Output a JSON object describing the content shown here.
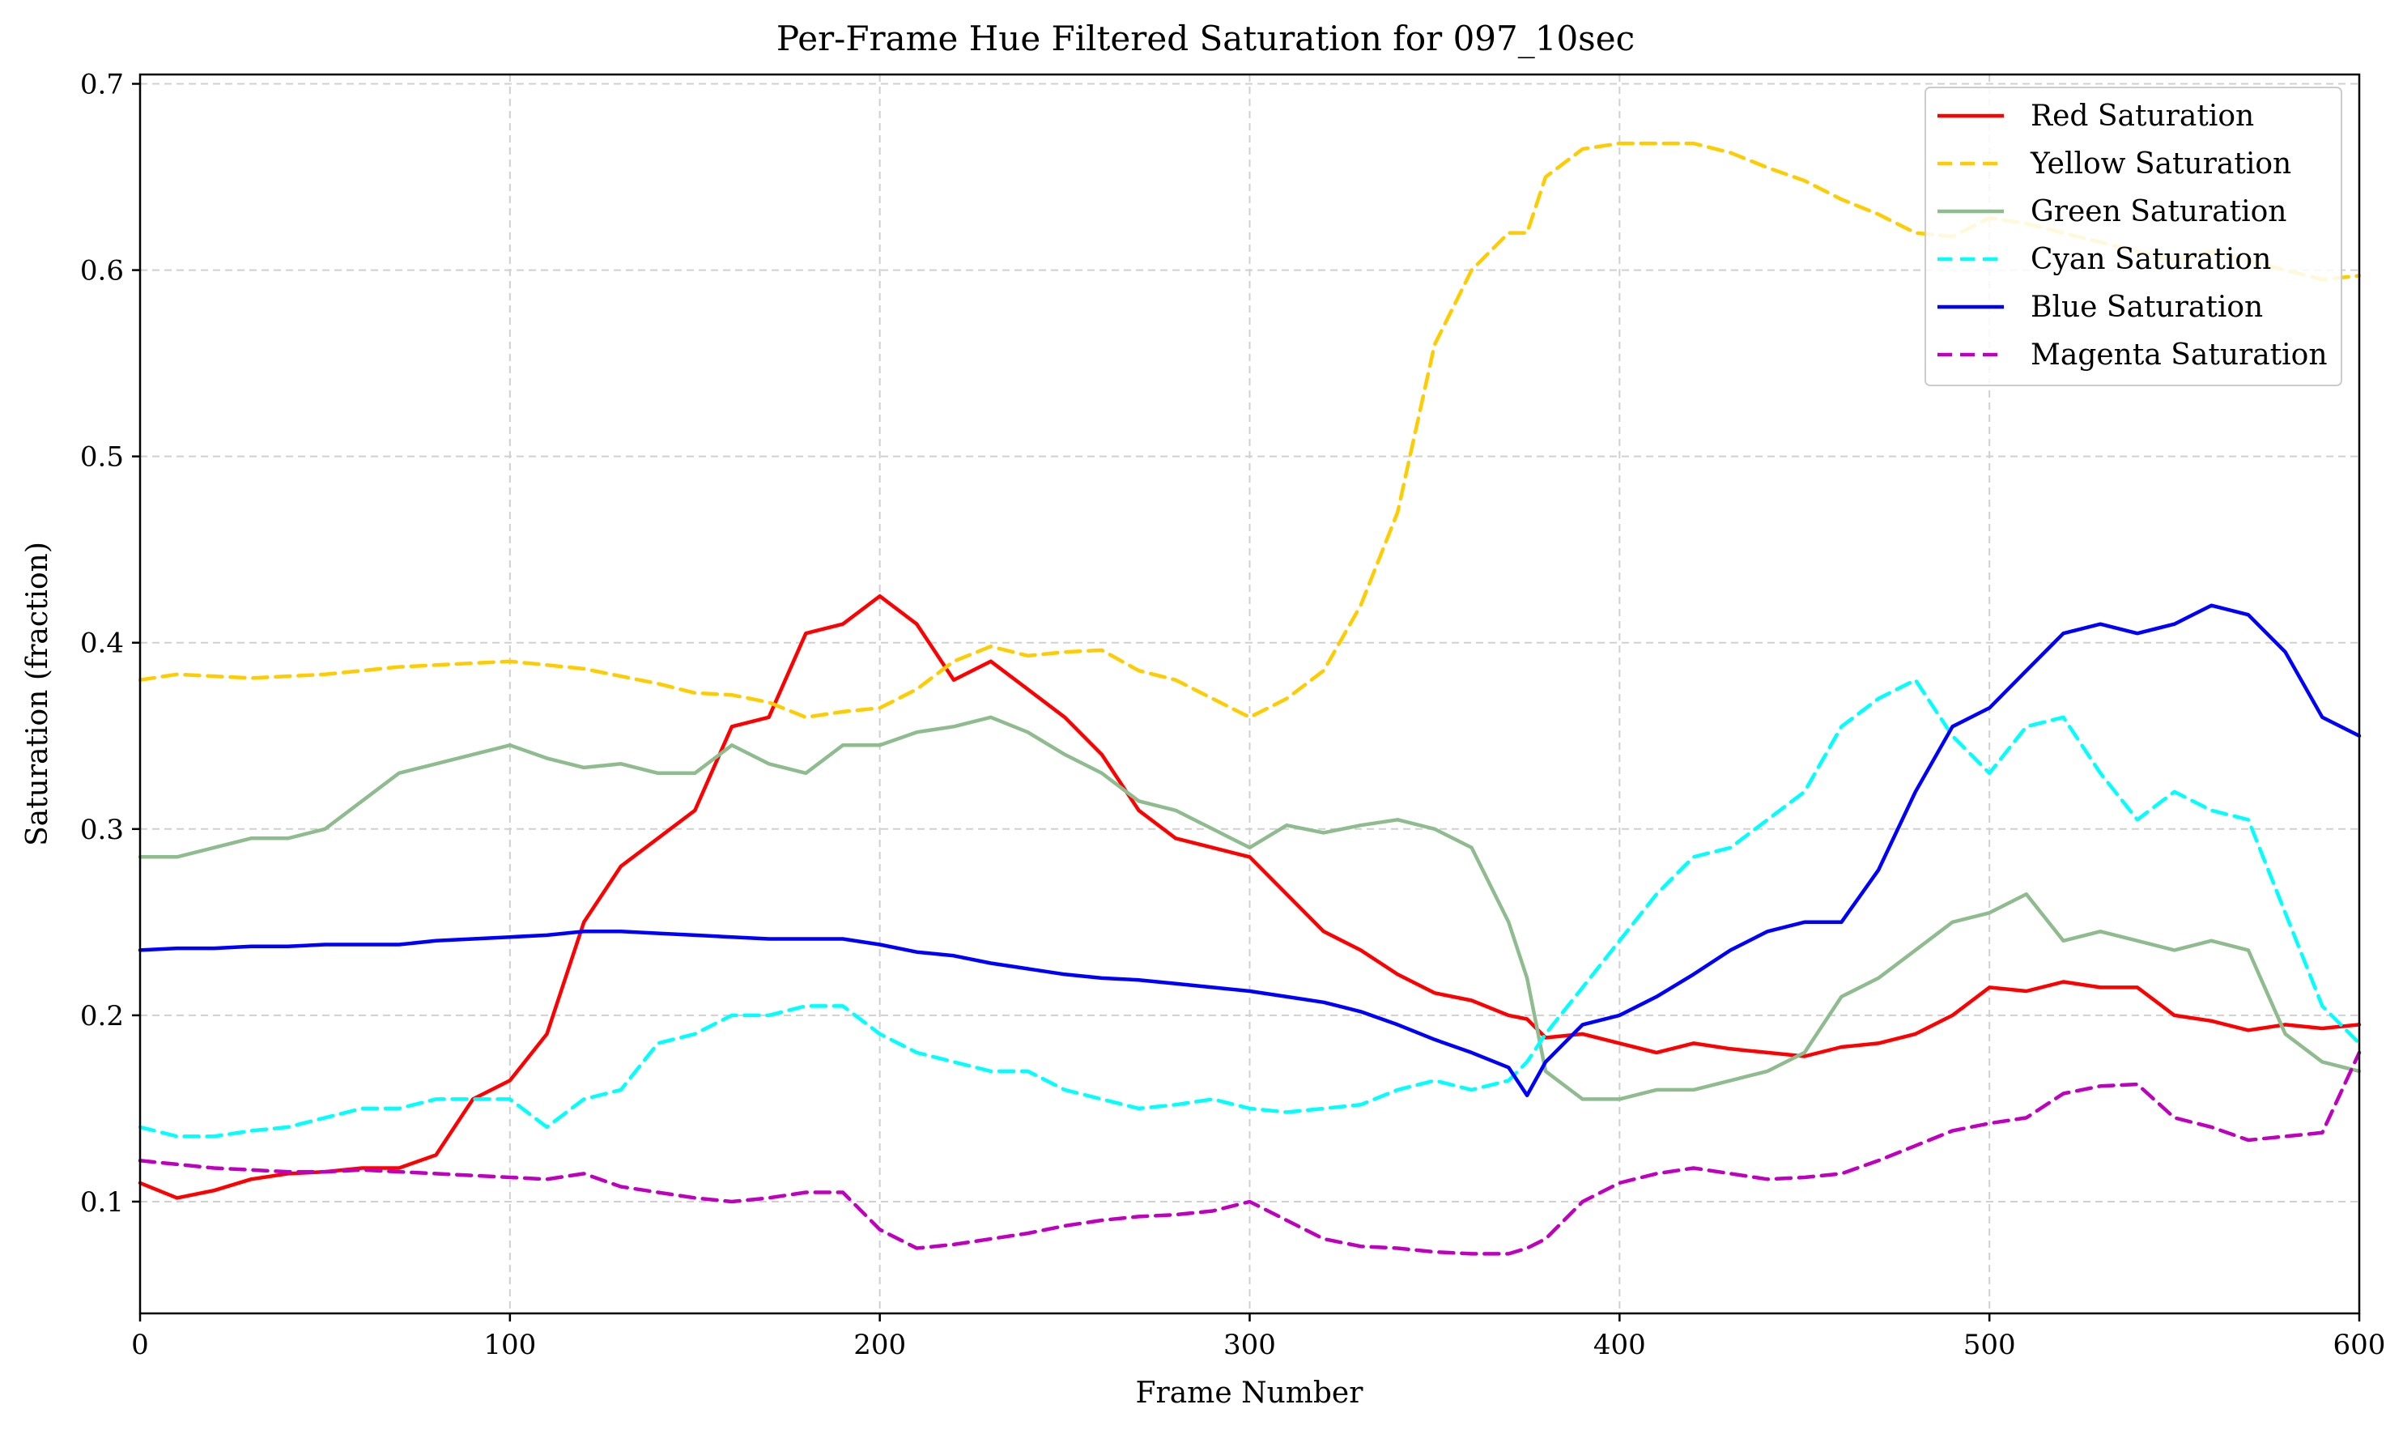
{
  "chart_data": {
    "type": "line",
    "title": "Per-Frame Hue Filtered Saturation for 097_10sec",
    "xlabel": "Frame Number",
    "ylabel": "Saturation (fraction)",
    "xlim": [
      0,
      600
    ],
    "ylim": [
      0.04,
      0.705
    ],
    "xticks": [
      0,
      100,
      200,
      300,
      400,
      500,
      600
    ],
    "yticks": [
      0.1,
      0.2,
      0.3,
      0.4,
      0.5,
      0.6,
      0.7
    ],
    "grid": true,
    "legend_position": "top-right",
    "x": [
      0,
      10,
      20,
      30,
      40,
      50,
      60,
      70,
      80,
      90,
      100,
      110,
      120,
      130,
      140,
      150,
      160,
      170,
      180,
      190,
      200,
      210,
      220,
      230,
      240,
      250,
      260,
      270,
      280,
      290,
      300,
      310,
      320,
      330,
      340,
      350,
      360,
      370,
      375,
      380,
      390,
      400,
      410,
      420,
      430,
      440,
      450,
      460,
      470,
      480,
      490,
      500,
      510,
      520,
      530,
      540,
      550,
      560,
      570,
      580,
      590,
      600
    ],
    "series": [
      {
        "name": "Red Saturation",
        "color": "#ff0000",
        "dash": "solid",
        "values": [
          0.11,
          0.102,
          0.106,
          0.112,
          0.115,
          0.116,
          0.118,
          0.118,
          0.125,
          0.155,
          0.165,
          0.19,
          0.25,
          0.28,
          0.295,
          0.31,
          0.355,
          0.36,
          0.405,
          0.41,
          0.425,
          0.41,
          0.38,
          0.39,
          0.375,
          0.36,
          0.34,
          0.31,
          0.295,
          0.29,
          0.285,
          0.265,
          0.245,
          0.235,
          0.222,
          0.212,
          0.208,
          0.2,
          0.198,
          0.188,
          0.19,
          0.185,
          0.18,
          0.185,
          0.182,
          0.18,
          0.178,
          0.183,
          0.185,
          0.19,
          0.2,
          0.215,
          0.213,
          0.218,
          0.215,
          0.215,
          0.2,
          0.197,
          0.192,
          0.195,
          0.193,
          0.195
        ]
      },
      {
        "name": "Yellow Saturation",
        "color": "#ffcc00",
        "dash": "dashed",
        "values": [
          0.38,
          0.383,
          0.382,
          0.381,
          0.382,
          0.383,
          0.385,
          0.387,
          0.388,
          0.389,
          0.39,
          0.388,
          0.386,
          0.382,
          0.378,
          0.373,
          0.372,
          0.368,
          0.36,
          0.363,
          0.365,
          0.375,
          0.39,
          0.398,
          0.393,
          0.395,
          0.396,
          0.385,
          0.38,
          0.37,
          0.36,
          0.37,
          0.385,
          0.42,
          0.47,
          0.56,
          0.6,
          0.62,
          0.62,
          0.65,
          0.665,
          0.668,
          0.668,
          0.668,
          0.663,
          0.655,
          0.648,
          0.638,
          0.63,
          0.62,
          0.618,
          0.628,
          0.625,
          0.62,
          0.615,
          0.61,
          0.605,
          0.61,
          0.605,
          0.6,
          0.595,
          0.597
        ]
      },
      {
        "name": "Green Saturation",
        "color": "#8fbc8f",
        "dash": "solid",
        "values": [
          0.285,
          0.285,
          0.29,
          0.295,
          0.295,
          0.3,
          0.315,
          0.33,
          0.335,
          0.34,
          0.345,
          0.338,
          0.333,
          0.335,
          0.33,
          0.33,
          0.345,
          0.335,
          0.33,
          0.345,
          0.345,
          0.352,
          0.355,
          0.36,
          0.352,
          0.34,
          0.33,
          0.315,
          0.31,
          0.3,
          0.29,
          0.302,
          0.298,
          0.302,
          0.305,
          0.3,
          0.29,
          0.25,
          0.22,
          0.17,
          0.155,
          0.155,
          0.16,
          0.16,
          0.165,
          0.17,
          0.18,
          0.21,
          0.22,
          0.235,
          0.25,
          0.255,
          0.265,
          0.24,
          0.245,
          0.24,
          0.235,
          0.24,
          0.235,
          0.19,
          0.175,
          0.17
        ]
      },
      {
        "name": "Cyan Saturation",
        "color": "#00ffff",
        "dash": "dashed",
        "values": [
          0.14,
          0.135,
          0.135,
          0.138,
          0.14,
          0.145,
          0.15,
          0.15,
          0.155,
          0.155,
          0.155,
          0.14,
          0.155,
          0.16,
          0.185,
          0.19,
          0.2,
          0.2,
          0.205,
          0.205,
          0.19,
          0.18,
          0.175,
          0.17,
          0.17,
          0.16,
          0.155,
          0.15,
          0.152,
          0.155,
          0.15,
          0.148,
          0.15,
          0.152,
          0.16,
          0.165,
          0.16,
          0.165,
          0.175,
          0.19,
          0.215,
          0.24,
          0.265,
          0.285,
          0.29,
          0.305,
          0.32,
          0.355,
          0.37,
          0.38,
          0.35,
          0.33,
          0.355,
          0.36,
          0.33,
          0.305,
          0.32,
          0.31,
          0.305,
          0.255,
          0.205,
          0.185
        ]
      },
      {
        "name": "Blue Saturation",
        "color": "#0000ff",
        "dash": "solid",
        "values": [
          0.235,
          0.236,
          0.236,
          0.237,
          0.237,
          0.238,
          0.238,
          0.238,
          0.24,
          0.241,
          0.242,
          0.243,
          0.245,
          0.245,
          0.244,
          0.243,
          0.242,
          0.241,
          0.241,
          0.241,
          0.238,
          0.234,
          0.232,
          0.228,
          0.225,
          0.222,
          0.22,
          0.219,
          0.217,
          0.215,
          0.213,
          0.21,
          0.207,
          0.202,
          0.195,
          0.187,
          0.18,
          0.172,
          0.157,
          0.175,
          0.195,
          0.2,
          0.21,
          0.222,
          0.235,
          0.245,
          0.25,
          0.25,
          0.278,
          0.32,
          0.355,
          0.365,
          0.385,
          0.405,
          0.41,
          0.405,
          0.41,
          0.42,
          0.415,
          0.395,
          0.36,
          0.35
        ]
      },
      {
        "name": "Magenta Saturation",
        "color": "#bf00bf",
        "dash": "dashed",
        "values": [
          0.122,
          0.12,
          0.118,
          0.117,
          0.116,
          0.116,
          0.117,
          0.116,
          0.115,
          0.114,
          0.113,
          0.112,
          0.115,
          0.108,
          0.105,
          0.102,
          0.1,
          0.102,
          0.105,
          0.105,
          0.085,
          0.075,
          0.077,
          0.08,
          0.083,
          0.087,
          0.09,
          0.092,
          0.093,
          0.095,
          0.1,
          0.09,
          0.08,
          0.076,
          0.075,
          0.073,
          0.072,
          0.072,
          0.075,
          0.08,
          0.1,
          0.11,
          0.115,
          0.118,
          0.115,
          0.112,
          0.113,
          0.115,
          0.122,
          0.13,
          0.138,
          0.142,
          0.145,
          0.158,
          0.162,
          0.163,
          0.145,
          0.14,
          0.133,
          0.135,
          0.137,
          0.18
        ]
      }
    ]
  }
}
